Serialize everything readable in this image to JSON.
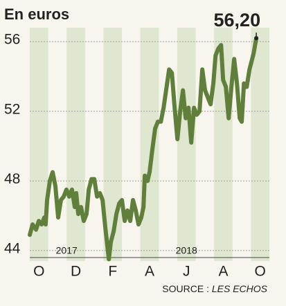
{
  "chart_data": {
    "type": "line",
    "title": "En euros",
    "x": [
      0,
      0.15,
      0.34,
      0.49,
      0.64,
      0.79,
      0.86,
      0.94,
      1.09,
      1.24,
      1.39,
      1.54,
      1.69,
      1.84,
      1.99,
      2.14,
      2.29,
      2.44,
      2.52,
      2.63,
      2.78,
      2.93,
      3.08,
      3.2,
      3.35,
      3.5,
      3.65,
      3.8,
      3.95,
      4.1,
      4.29,
      4.4,
      4.55,
      4.7,
      4.85,
      5,
      5.15,
      5.3,
      5.45,
      5.6,
      5.75,
      5.9,
      6.05,
      6.17,
      6.24,
      6.39,
      6.5,
      6.65,
      6.8,
      6.95,
      7.11,
      7.26,
      7.41,
      7.56,
      7.71,
      7.86,
      8.01,
      8.16,
      8.31,
      8.46,
      8.61,
      8.76,
      8.91,
      9.06,
      9.21,
      9.36,
      9.51,
      9.66,
      9.81,
      9.96,
      10.08,
      10.23,
      10.38,
      10.49,
      10.64,
      10.79,
      10.94,
      11.09,
      11.24,
      11.39,
      11.5,
      11.62,
      11.77,
      11.92,
      12.14,
      12.29
    ],
    "values": [
      44.9,
      45.5,
      45.2,
      45.7,
      45.5,
      45.9,
      45.5,
      46.9,
      48.0,
      48.5,
      47.7,
      45.9,
      46.9,
      47.1,
      47.5,
      47.1,
      47.5,
      46.5,
      47.3,
      46.1,
      46.5,
      45.7,
      46.1,
      47.5,
      48.1,
      48.1,
      47.1,
      47.3,
      46.9,
      45.3,
      43.5,
      44.5,
      45.1,
      46.1,
      46.7,
      46.9,
      45.7,
      46.3,
      45.7,
      46.9,
      46.3,
      45.5,
      45.9,
      46.5,
      48.3,
      48.0,
      48.5,
      49.8,
      51.0,
      51.4,
      51.4,
      52.2,
      53.3,
      54.4,
      54.2,
      52.2,
      50.4,
      52.0,
      53.2,
      51.6,
      52.2,
      50.2,
      52.2,
      51.8,
      52.0,
      54.4,
      53.2,
      52.8,
      52.4,
      53.6,
      55.2,
      55.6,
      55.8,
      53.8,
      53.4,
      51.6,
      53.4,
      55.0,
      53.6,
      51.6,
      51.4,
      53.6,
      53.4,
      54.4,
      55.3,
      56.2
    ],
    "color": "#5f7f3b",
    "xlim": [
      0,
      13
    ],
    "xticks": [
      {
        "value": 0.5,
        "label": "O"
      },
      {
        "value": 2.5,
        "label": "D"
      },
      {
        "value": 4.5,
        "label": "F"
      },
      {
        "value": 6.5,
        "label": "A"
      },
      {
        "value": 8.5,
        "label": "J"
      },
      {
        "value": 10.5,
        "label": "A"
      },
      {
        "value": 12.5,
        "label": "O"
      }
    ],
    "ylim": [
      43.4,
      56.8
    ],
    "yticks": [
      44,
      48,
      52,
      56
    ],
    "grid": true,
    "annotations": [
      {
        "text": "56,20",
        "x": 12.29,
        "y": 56.2
      },
      {
        "text": "2017",
        "x": 2
      },
      {
        "text": "2018",
        "x": 8.5
      }
    ],
    "source": {
      "prefix": "SOURCE :",
      "name": "LES ECHOS"
    }
  }
}
